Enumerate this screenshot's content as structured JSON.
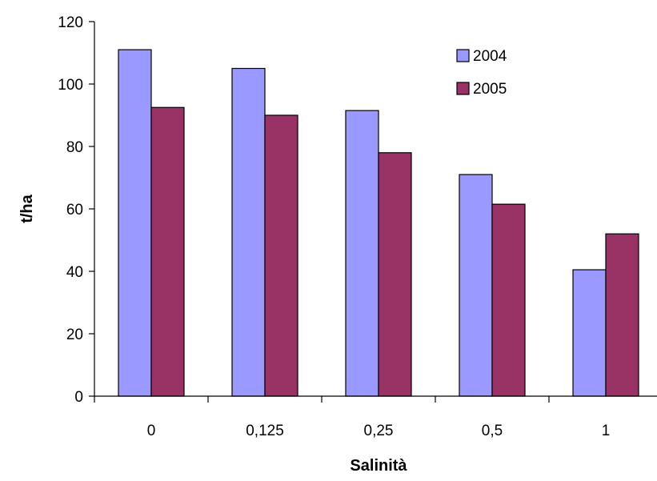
{
  "chart_data": {
    "type": "bar",
    "title": "",
    "xlabel": "Salinità",
    "ylabel": "t/ha",
    "categories": [
      "0",
      "0,125",
      "0,25",
      "0,5",
      "1"
    ],
    "series": [
      {
        "name": "2004",
        "values": [
          111,
          105,
          91.5,
          71,
          40.5
        ],
        "color": "#9999ff"
      },
      {
        "name": "2005",
        "values": [
          92.5,
          90,
          78,
          61.5,
          52
        ],
        "color": "#993366"
      }
    ],
    "ylim": [
      0,
      120
    ],
    "yticks": [
      0,
      20,
      40,
      60,
      80,
      100,
      120
    ],
    "grid": false,
    "legend_position": "top-right"
  }
}
